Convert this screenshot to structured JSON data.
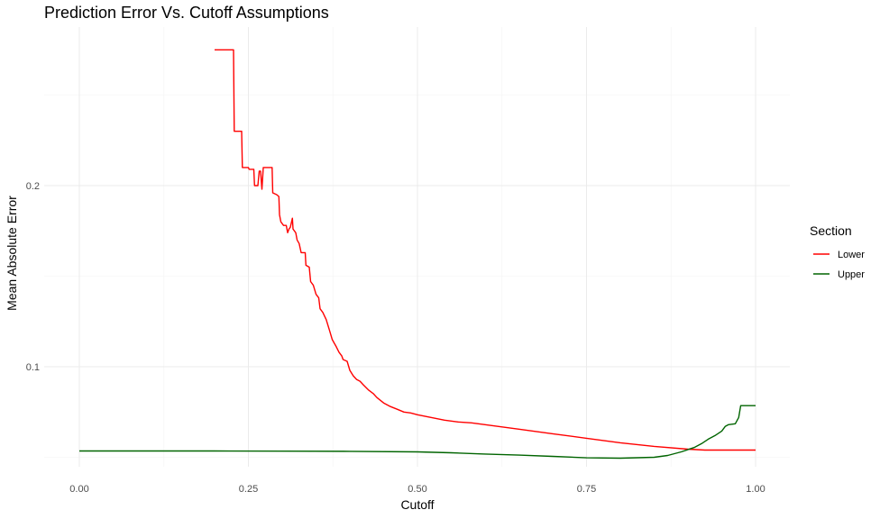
{
  "chart_data": {
    "type": "line",
    "title": "Prediction Error Vs. Cutoff Assumptions",
    "xlabel": "Cutoff",
    "ylabel": "Mean Absolute Error",
    "xlim": [
      -0.02,
      1.0
    ],
    "ylim": [
      0.049,
      0.282
    ],
    "x_ticks": [
      0.0,
      0.25,
      0.5,
      0.75,
      1.0
    ],
    "x_tick_labels": [
      "0.00",
      "0.25",
      "0.50",
      "0.75",
      "1.00"
    ],
    "y_ticks": [
      0.1,
      0.2
    ],
    "y_tick_labels": [
      "0.1",
      "0.2"
    ],
    "y_minor_ticks": [
      0.05,
      0.15,
      0.25
    ],
    "x_minor_ticks": [
      0.125,
      0.375,
      0.625,
      0.875
    ],
    "grid": true,
    "legend": {
      "title": "Section",
      "position": "right"
    },
    "series": [
      {
        "name": "Lower",
        "color": "#ff0000",
        "points": [
          [
            0.2,
            0.275
          ],
          [
            0.228,
            0.275
          ],
          [
            0.229,
            0.23
          ],
          [
            0.24,
            0.23
          ],
          [
            0.241,
            0.21
          ],
          [
            0.25,
            0.21
          ],
          [
            0.251,
            0.209
          ],
          [
            0.258,
            0.209
          ],
          [
            0.259,
            0.2
          ],
          [
            0.264,
            0.2
          ],
          [
            0.266,
            0.208
          ],
          [
            0.268,
            0.208
          ],
          [
            0.27,
            0.198
          ],
          [
            0.272,
            0.21
          ],
          [
            0.285,
            0.21
          ],
          [
            0.286,
            0.196
          ],
          [
            0.292,
            0.195
          ],
          [
            0.295,
            0.194
          ],
          [
            0.296,
            0.184
          ],
          [
            0.298,
            0.18
          ],
          [
            0.302,
            0.178
          ],
          [
            0.306,
            0.178
          ],
          [
            0.308,
            0.174
          ],
          [
            0.31,
            0.176
          ],
          [
            0.312,
            0.177
          ],
          [
            0.315,
            0.182
          ],
          [
            0.316,
            0.176
          ],
          [
            0.32,
            0.174
          ],
          [
            0.322,
            0.17
          ],
          [
            0.325,
            0.168
          ],
          [
            0.328,
            0.163
          ],
          [
            0.334,
            0.163
          ],
          [
            0.335,
            0.156
          ],
          [
            0.34,
            0.155
          ],
          [
            0.342,
            0.147
          ],
          [
            0.346,
            0.145
          ],
          [
            0.35,
            0.14
          ],
          [
            0.354,
            0.138
          ],
          [
            0.356,
            0.132
          ],
          [
            0.36,
            0.13
          ],
          [
            0.365,
            0.126
          ],
          [
            0.37,
            0.12
          ],
          [
            0.374,
            0.115
          ],
          [
            0.38,
            0.111
          ],
          [
            0.384,
            0.108
          ],
          [
            0.388,
            0.106
          ],
          [
            0.39,
            0.104
          ],
          [
            0.396,
            0.103
          ],
          [
            0.4,
            0.098
          ],
          [
            0.405,
            0.095
          ],
          [
            0.41,
            0.093
          ],
          [
            0.415,
            0.092
          ],
          [
            0.42,
            0.09
          ],
          [
            0.428,
            0.087
          ],
          [
            0.435,
            0.085
          ],
          [
            0.44,
            0.083
          ],
          [
            0.45,
            0.08
          ],
          [
            0.46,
            0.078
          ],
          [
            0.47,
            0.0765
          ],
          [
            0.48,
            0.075
          ],
          [
            0.49,
            0.0745
          ],
          [
            0.5,
            0.0735
          ],
          [
            0.52,
            0.072
          ],
          [
            0.54,
            0.0705
          ],
          [
            0.56,
            0.0695
          ],
          [
            0.58,
            0.069
          ],
          [
            0.6,
            0.068
          ],
          [
            0.62,
            0.067
          ],
          [
            0.65,
            0.0655
          ],
          [
            0.7,
            0.063
          ],
          [
            0.75,
            0.0605
          ],
          [
            0.8,
            0.058
          ],
          [
            0.85,
            0.056
          ],
          [
            0.9,
            0.0545
          ],
          [
            0.925,
            0.054
          ],
          [
            0.95,
            0.054
          ],
          [
            1.0,
            0.054
          ]
        ]
      },
      {
        "name": "Upper",
        "color": "#006400",
        "points": [
          [
            0.0,
            0.0535
          ],
          [
            0.1,
            0.0535
          ],
          [
            0.2,
            0.0535
          ],
          [
            0.3,
            0.0534
          ],
          [
            0.4,
            0.0533
          ],
          [
            0.5,
            0.053
          ],
          [
            0.55,
            0.0525
          ],
          [
            0.6,
            0.0518
          ],
          [
            0.65,
            0.0512
          ],
          [
            0.7,
            0.0505
          ],
          [
            0.75,
            0.0497
          ],
          [
            0.8,
            0.0495
          ],
          [
            0.85,
            0.05
          ],
          [
            0.87,
            0.051
          ],
          [
            0.89,
            0.053
          ],
          [
            0.91,
            0.0555
          ],
          [
            0.92,
            0.0575
          ],
          [
            0.93,
            0.06
          ],
          [
            0.94,
            0.062
          ],
          [
            0.95,
            0.0645
          ],
          [
            0.955,
            0.067
          ],
          [
            0.96,
            0.068
          ],
          [
            0.97,
            0.0685
          ],
          [
            0.975,
            0.072
          ],
          [
            0.978,
            0.0785
          ],
          [
            0.98,
            0.0785
          ],
          [
            1.0,
            0.0785
          ]
        ]
      }
    ]
  }
}
